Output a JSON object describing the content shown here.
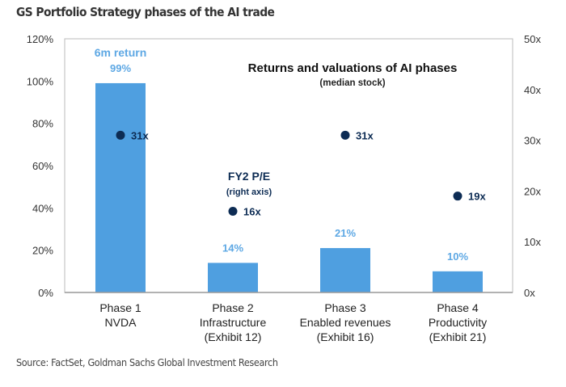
{
  "chart_data": {
    "type": "bar",
    "title": "GS Portfolio Strategy phases of the AI trade",
    "inner_title": "Returns and valuations of AI phases",
    "inner_subtitle": "(median stock)",
    "categories": [
      [
        "Phase 1",
        "NVDA"
      ],
      [
        "Phase 2",
        "Infrastructure",
        "(Exhibit 12)"
      ],
      [
        "Phase 3",
        "Enabled revenues",
        "(Exhibit 16)"
      ],
      [
        "Phase 4",
        "Productivity",
        "(Exhibit 21)"
      ]
    ],
    "series": [
      {
        "name": "6m return",
        "type": "bar",
        "axis": "left",
        "values": [
          99,
          14,
          21,
          10
        ],
        "labels": [
          "99%",
          "14%",
          "21%",
          "10%"
        ],
        "color": "#4f9fe0"
      },
      {
        "name": "FY2 P/E",
        "name_note": "(right axis)",
        "type": "scatter",
        "axis": "right",
        "values": [
          31,
          16,
          31,
          19
        ],
        "labels": [
          "31x",
          "16x",
          "31x",
          "19x"
        ],
        "color": "#0d2c54"
      }
    ],
    "ylim_left": [
      0,
      120
    ],
    "yticks_left": [
      "0%",
      "20%",
      "40%",
      "60%",
      "80%",
      "100%",
      "120%"
    ],
    "ylim_right": [
      0,
      50
    ],
    "yticks_right": [
      "0x",
      "10x",
      "20x",
      "30x",
      "40x",
      "50x"
    ],
    "grid": false,
    "source": "Source: FactSet, Goldman Sachs Global Investment Research"
  }
}
